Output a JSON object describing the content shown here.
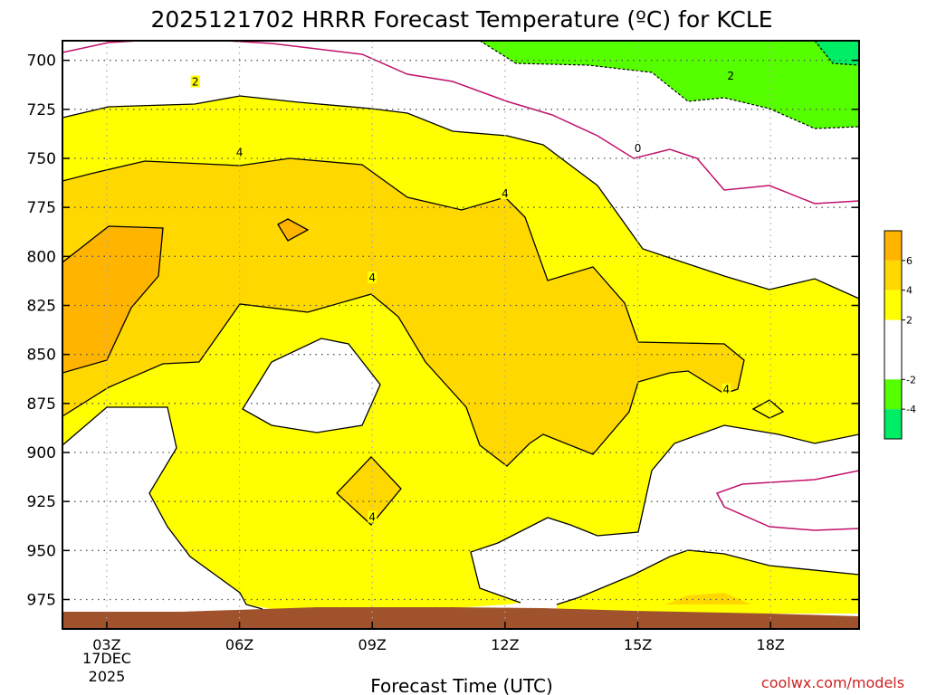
{
  "chart_data": {
    "type": "contour",
    "title": "2025121702 HRRR Forecast Temperature (ºC) for KCLE",
    "xlabel": "Forecast Time (UTC)",
    "ylabel": "",
    "x_ticks": [
      {
        "hour": 3,
        "label": "03Z"
      },
      {
        "hour": 6,
        "label": "06Z"
      },
      {
        "hour": 9,
        "label": "09Z"
      },
      {
        "hour": 12,
        "label": "12Z"
      },
      {
        "hour": 15,
        "label": "15Z"
      },
      {
        "hour": 18,
        "label": "18Z"
      }
    ],
    "date_label_line1": "17DEC",
    "date_label_line2": "2025",
    "xlim": [
      2,
      20
    ],
    "y_ticks": [
      700,
      725,
      750,
      775,
      800,
      825,
      850,
      875,
      900,
      925,
      950,
      975
    ],
    "ylim": [
      990,
      690
    ],
    "y_inverted": true,
    "grid": true,
    "contour_interval_C": 2,
    "contour_labels": [
      {
        "hour": 5,
        "p": 711,
        "text": "2"
      },
      {
        "hour": 17.1,
        "p": 708,
        "text": "2"
      },
      {
        "hour": 6.0,
        "p": 747,
        "text": "4"
      },
      {
        "hour": 12.0,
        "p": 768,
        "text": "4"
      },
      {
        "hour": 9.0,
        "p": 811,
        "text": "4"
      },
      {
        "hour": 17.0,
        "p": 868,
        "text": "4"
      },
      {
        "hour": 9.0,
        "p": 933,
        "text": "4"
      },
      {
        "hour": 15.0,
        "p": 745,
        "text": "0"
      }
    ],
    "colorbar": {
      "ticks": [
        6,
        4,
        2,
        -2,
        -4
      ],
      "bins": [
        {
          "range": [
            6,
            8
          ],
          "color": "#ffb400"
        },
        {
          "range": [
            4,
            6
          ],
          "color": "#ffd800"
        },
        {
          "range": [
            2,
            4
          ],
          "color": "#ffff00"
        },
        {
          "range": [
            -2,
            2
          ],
          "color": "#ffffff"
        },
        {
          "range": [
            -4,
            -2
          ],
          "color": "#55ff00"
        },
        {
          "range": [
            -6,
            -4
          ],
          "color": "#00ee66"
        }
      ]
    },
    "colors": {
      "yellow": "#ffff00",
      "gold": "#ffd800",
      "orange": "#ffb400",
      "green": "#55ff00",
      "zero_line": "#c0106a",
      "ground": "#a0522d"
    }
  },
  "credit": "coolwx.com/models"
}
